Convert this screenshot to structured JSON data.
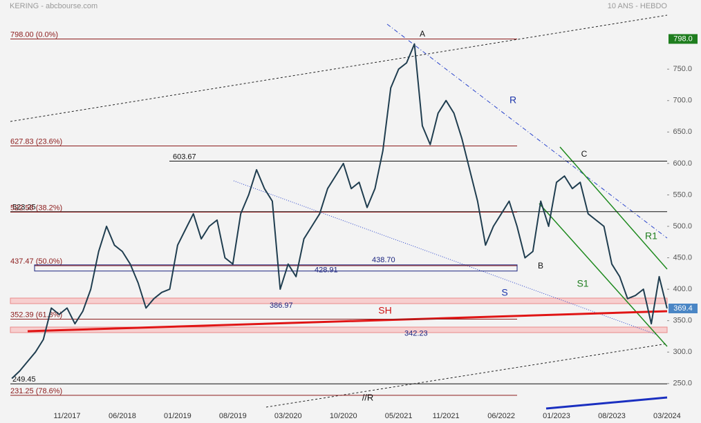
{
  "chart_data": {
    "type": "line",
    "title": "KERING - abcbourse.com",
    "subtitle": "10 ANS - HEBDO",
    "x": [
      "04/2017",
      "05/2017",
      "06/2017",
      "07/2017",
      "08/2017",
      "09/2017",
      "10/2017",
      "11/2017",
      "12/2017",
      "01/2018",
      "02/2018",
      "03/2018",
      "04/2018",
      "05/2018",
      "06/2018",
      "07/2018",
      "08/2018",
      "09/2018",
      "10/2018",
      "11/2018",
      "12/2018",
      "01/2019",
      "02/2019",
      "03/2019",
      "04/2019",
      "05/2019",
      "06/2019",
      "07/2019",
      "08/2019",
      "09/2019",
      "10/2019",
      "11/2019",
      "12/2019",
      "01/2020",
      "02/2020",
      "03/2020",
      "04/2020",
      "05/2020",
      "06/2020",
      "07/2020",
      "08/2020",
      "09/2020",
      "10/2020",
      "11/2020",
      "12/2020",
      "01/2021",
      "02/2021",
      "03/2021",
      "04/2021",
      "05/2021",
      "06/2021",
      "07/2021",
      "08/2021",
      "09/2021",
      "10/2021",
      "11/2021",
      "12/2021",
      "01/2022",
      "02/2022",
      "03/2022",
      "04/2022",
      "05/2022",
      "06/2022",
      "07/2022",
      "08/2022",
      "09/2022",
      "10/2022",
      "11/2022",
      "12/2022",
      "01/2023",
      "02/2023",
      "03/2023",
      "04/2023",
      "05/2023",
      "06/2023",
      "07/2023",
      "08/2023",
      "09/2023",
      "10/2023",
      "11/2023",
      "12/2023",
      "01/2024",
      "02/2024",
      "03/2024"
    ],
    "values": [
      258,
      270,
      285,
      300,
      320,
      370,
      360,
      370,
      345,
      365,
      400,
      460,
      500,
      470,
      460,
      440,
      410,
      370,
      385,
      395,
      400,
      470,
      495,
      520,
      480,
      500,
      510,
      450,
      440,
      520,
      550,
      590,
      560,
      540,
      400,
      440,
      420,
      480,
      500,
      520,
      560,
      580,
      600,
      560,
      570,
      530,
      560,
      620,
      720,
      750,
      760,
      790,
      660,
      630,
      680,
      700,
      680,
      640,
      590,
      540,
      470,
      500,
      520,
      540,
      500,
      450,
      460,
      540,
      500,
      570,
      580,
      560,
      570,
      520,
      510,
      500,
      440,
      420,
      385,
      390,
      400,
      345,
      420,
      369.4
    ],
    "color": "#1f3d4f",
    "xticks": [
      "11/2017",
      "06/2018",
      "01/2019",
      "08/2019",
      "03/2020",
      "10/2020",
      "05/2021",
      "11/2021",
      "06/2022",
      "01/2023",
      "08/2023",
      "03/2024"
    ],
    "ylim": [
      196,
      838
    ],
    "yticks": [
      {
        "value": 250,
        "label": "250.0"
      },
      {
        "value": 300,
        "label": "300.0"
      },
      {
        "value": 350,
        "label": "350.0"
      },
      {
        "value": 400,
        "label": "400.0"
      },
      {
        "value": 450,
        "label": "450.0"
      },
      {
        "value": 500,
        "label": "500.0"
      },
      {
        "value": 550,
        "label": "550.0"
      },
      {
        "value": 600,
        "label": "600.0"
      },
      {
        "value": 650,
        "label": "650.0"
      },
      {
        "value": 700,
        "label": "700.0"
      },
      {
        "value": 750,
        "label": "750.0"
      }
    ],
    "high_tag": {
      "value": 798,
      "label": "798.0",
      "color": "#1e7d1e"
    },
    "last_price": {
      "value": 369.4,
      "color": "#4a86c5"
    },
    "levels": [
      {
        "value": 798,
        "label": "798.00  (0.0%)",
        "color": "#8b1a1a"
      },
      {
        "value": 627.83,
        "label": "627.83  (23.6%)",
        "color": "#8b1a1a"
      },
      {
        "value": 603.67,
        "label": "603.67",
        "color": "#111111"
      },
      {
        "value": 523.25,
        "label": "523.25",
        "color": "#111111"
      },
      {
        "value": 522.58,
        "label": "522.58  (38.2%)",
        "color": "#8b1a1a"
      },
      {
        "value": 437.47,
        "label": "437.47  (50.0%)",
        "color": "#8b1a1a"
      },
      {
        "value": 352.39,
        "label": "352.39  (61.8%)",
        "color": "#8b1a1a"
      },
      {
        "value": 249.45,
        "label": "249.45",
        "color": "#111111"
      },
      {
        "value": 231.25,
        "label": "231.25  (78.6%)",
        "color": "#8b1a1a"
      }
    ],
    "box": [
      {
        "value": 438.7,
        "label": "438.70"
      },
      {
        "value": 428.91,
        "label": "428.91"
      }
    ],
    "price_labels": [
      {
        "value": 386.97,
        "label": "386.97"
      },
      {
        "value": 342.23,
        "label": "342.23"
      }
    ],
    "annotations": [
      {
        "text": "A",
        "color": "#111111"
      },
      {
        "text": "B",
        "color": "#111111"
      },
      {
        "text": "C",
        "color": "#111111"
      },
      {
        "text": "R",
        "color": "#1a33aa"
      },
      {
        "text": "S",
        "color": "#1a33aa"
      },
      {
        "text": "R1",
        "color": "#1e7d1e"
      },
      {
        "text": "S1",
        "color": "#1e7d1e"
      },
      {
        "text": "SH",
        "color": "#d01010"
      },
      {
        "text": "//R",
        "color": "#111111"
      }
    ]
  }
}
